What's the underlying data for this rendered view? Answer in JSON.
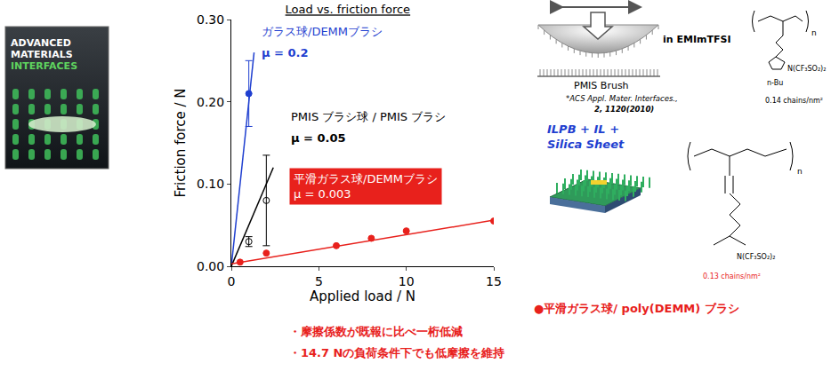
{
  "chart_data": {
    "type": "scatter",
    "title": "Load vs. friction force",
    "x_label": "Applied load / N",
    "y_label": "Friction force / N",
    "xlim": [
      0,
      15
    ],
    "xticks": [
      0,
      5,
      10,
      15
    ],
    "ylim": [
      0,
      0.3
    ],
    "yticks": [
      {
        "value": 0,
        "label": "0.00"
      },
      {
        "value": 0.1,
        "label": "0.10"
      },
      {
        "value": 0.2,
        "label": "0.20"
      },
      {
        "value": 0.3,
        "label": "0.30"
      }
    ],
    "grid": false,
    "series": [
      {
        "name": "ガラス球/DEMMブラシ",
        "label": "μ = 0.2",
        "color": "#1f3fd0",
        "marker": "circle",
        "x": [
          1
        ],
        "values": [
          0.21
        ],
        "errors": [
          0.04
        ],
        "fit": {
          "x": [
            0,
            1.3
          ],
          "values": [
            0,
            0.26
          ]
        }
      },
      {
        "name": "PMIS ブラシ球 / PMIS ブラシ",
        "label": "μ = 0.05",
        "color": "#000000",
        "marker": "circle-open",
        "x": [
          1,
          2
        ],
        "values": [
          0.03,
          0.08
        ],
        "errors": [
          0.006,
          0.055
        ],
        "fit": {
          "x": [
            0,
            2.4
          ],
          "values": [
            0,
            0.12
          ]
        }
      },
      {
        "name": "平滑ガラス球/DEMMブラシ",
        "label": "μ = 0.003",
        "color": "#e8211c",
        "marker": "circle",
        "x": [
          0.5,
          2,
          6,
          8,
          10,
          15
        ],
        "values": [
          0.005,
          0.016,
          0.025,
          0.034,
          0.043,
          0.055
        ],
        "fit": {
          "x": [
            0,
            15
          ],
          "values": [
            0.003,
            0.056
          ]
        }
      }
    ]
  },
  "figure_texts": {
    "cover": [
      "ADVANCED",
      "MATERIALS",
      "INTERFACES"
    ],
    "medium": "in EMImTFSI",
    "brush_1": "PMIS Brush",
    "reference": [
      "*ACS Appl. Mater. Interfaces.,",
      "2, 1120(2010)"
    ],
    "structure_1": [
      "n",
      "N(CF₃SO₂)₂",
      "n-Bu",
      "0.14 chains/nm²"
    ],
    "brush_2": [
      "ILPB + IL +",
      "Silica Sheet"
    ],
    "structure_2": [
      "n",
      "N(CF₃SO₂)₂",
      "0.13 chains/nm²"
    ],
    "caption": "●平滑ガラス球/ poly(DEMM) ブラシ",
    "bullets": [
      "・摩擦係数が既報に比べ一桁低減",
      "・14.7 Nの負荷条件下でも低摩擦を維持"
    ]
  }
}
